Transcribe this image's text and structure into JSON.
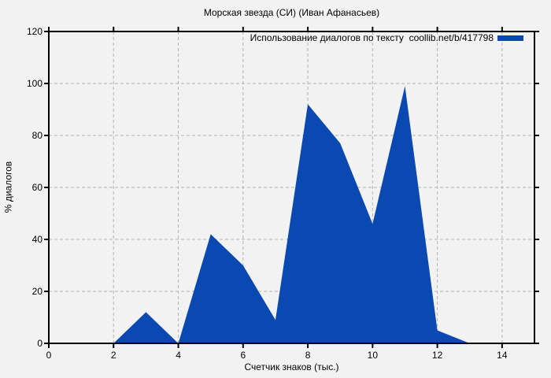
{
  "colors": {
    "background": "#f2f2f2",
    "grid": "#b3b3b3",
    "axis": "#000000",
    "text": "#000000",
    "fill": "#0a48b2"
  },
  "chart_data": {
    "type": "area",
    "title": "Морская звезда (СИ) (Иван Афанасьев)",
    "xlabel": "Счетчик знаков (тыс.)",
    "ylabel": "% диалогов",
    "xlim": [
      0,
      15
    ],
    "ylim": [
      0,
      120
    ],
    "xticks": [
      0,
      2,
      4,
      6,
      8,
      10,
      12,
      14
    ],
    "yticks": [
      0,
      20,
      40,
      60,
      80,
      100,
      120
    ],
    "grid": true,
    "legend_position": "top-right-inside",
    "series": [
      {
        "name": "Использование диалогов по тексту  coollib.net/b/417798",
        "x": [
          0,
          1,
          2,
          3,
          4,
          5,
          6,
          7,
          8,
          9,
          10,
          11,
          12,
          13
        ],
        "y": [
          0,
          0,
          0,
          12,
          0,
          42,
          30,
          9,
          92,
          77,
          46,
          99,
          5,
          0
        ],
        "fill_color": "#0a48b2"
      }
    ]
  }
}
